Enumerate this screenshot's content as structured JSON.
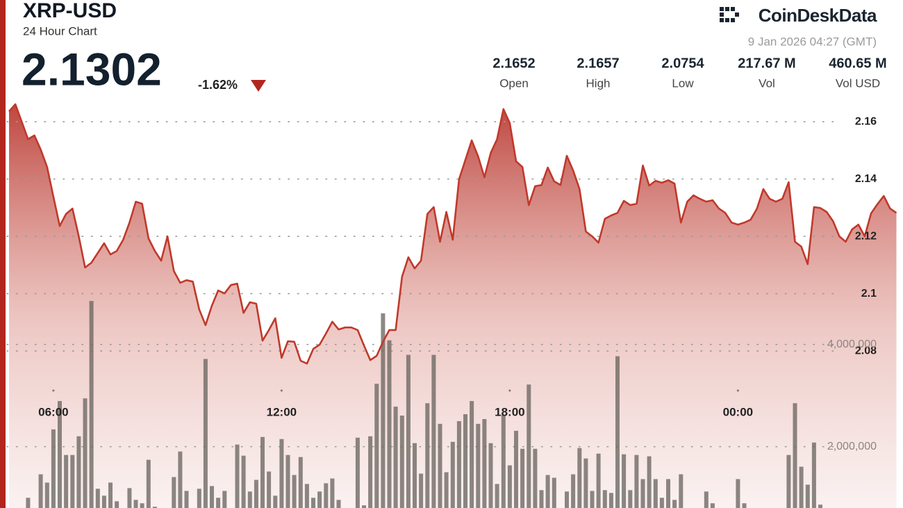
{
  "header": {
    "title": "XRP-USD",
    "subtitle": "24 Hour Chart",
    "price": "2.1302",
    "change": "-1.62%",
    "brand": "CoinDeskData",
    "timestamp": "9 Jan 2026 04:27 (GMT)",
    "stats": [
      {
        "value": "2.1652",
        "label": "Open"
      },
      {
        "value": "2.1657",
        "label": "High"
      },
      {
        "value": "2.0754",
        "label": "Low"
      },
      {
        "value": "217.67 M",
        "label": "Vol"
      },
      {
        "value": "460.65 M",
        "label": "Vol USD"
      }
    ]
  },
  "chart_data": {
    "type": "line",
    "categories": [
      null,
      null,
      null,
      null,
      null,
      null,
      null,
      "06:00",
      null,
      null,
      null,
      null,
      null,
      null,
      null,
      null,
      null,
      null,
      null,
      null,
      null,
      null,
      null,
      null,
      null,
      null,
      null,
      null,
      null,
      null,
      null,
      null,
      null,
      null,
      null,
      null,
      null,
      null,
      null,
      null,
      null,
      null,
      null,
      "12:00",
      null,
      null,
      null,
      null,
      null,
      null,
      null,
      null,
      null,
      null,
      null,
      null,
      null,
      null,
      null,
      null,
      null,
      null,
      null,
      null,
      null,
      null,
      null,
      null,
      null,
      null,
      null,
      null,
      null,
      null,
      null,
      null,
      null,
      null,
      null,
      "18:00",
      null,
      null,
      null,
      null,
      null,
      null,
      null,
      null,
      null,
      null,
      null,
      null,
      null,
      null,
      null,
      null,
      null,
      null,
      null,
      null,
      null,
      null,
      null,
      null,
      null,
      null,
      null,
      null,
      null,
      null,
      null,
      null,
      null,
      null,
      null,
      "00:00",
      null,
      null,
      null,
      null,
      null,
      null,
      null,
      null,
      null,
      null,
      null,
      null,
      null,
      null,
      null,
      null,
      null,
      null,
      null,
      null,
      null,
      null,
      null,
      null,
      null
    ],
    "series": [
      {
        "color": "#c0392b",
        "values": [
          2.1636,
          2.1661,
          2.16,
          2.1539,
          2.1552,
          2.1503,
          2.1442,
          2.1338,
          2.1236,
          2.1278,
          2.1297,
          2.12,
          2.1091,
          2.1108,
          2.1142,
          2.1176,
          2.1137,
          2.1149,
          2.1188,
          2.1248,
          2.1321,
          2.1314,
          2.1193,
          2.1149,
          2.1115,
          2.12,
          2.1079,
          2.1038,
          2.1047,
          2.1042,
          2.0945,
          2.089,
          2.0958,
          2.1011,
          2.1001,
          2.103,
          2.1035,
          2.0933,
          2.097,
          2.0965,
          2.0836,
          2.0873,
          2.0914,
          2.0776,
          2.0834,
          2.0832,
          2.0766,
          2.0756,
          2.0807,
          2.0822,
          2.0861,
          2.0902,
          2.0875,
          2.0882,
          2.0882,
          2.0873,
          2.0819,
          2.0768,
          2.0783,
          2.0832,
          2.0873,
          2.0873,
          2.1059,
          2.1127,
          2.1088,
          2.1115,
          2.1278,
          2.1302,
          2.1181,
          2.1285,
          2.1188,
          2.1399,
          2.1467,
          2.1535,
          2.1479,
          2.1406,
          2.1491,
          2.1539,
          2.1644,
          2.1595,
          2.1462,
          2.1442,
          2.1309,
          2.1375,
          2.1379,
          2.144,
          2.1392,
          2.1379,
          2.1481,
          2.143,
          2.1365,
          2.1217,
          2.12,
          2.1178,
          2.1261,
          2.1273,
          2.1282,
          2.1324,
          2.1309,
          2.1314,
          2.1447,
          2.1377,
          2.1394,
          2.1387,
          2.1396,
          2.1384,
          2.1248,
          2.1321,
          2.1343,
          2.1331,
          2.1321,
          2.1326,
          2.1297,
          2.1282,
          2.1248,
          2.1241,
          2.1248,
          2.1258,
          2.1297,
          2.1365,
          2.1331,
          2.1321,
          2.1331,
          2.1389,
          2.1181,
          2.1164,
          2.1103,
          2.1302,
          2.1299,
          2.1285,
          2.1253,
          2.12,
          2.1181,
          2.1224,
          2.1241,
          2.12,
          2.128,
          2.1312,
          2.1341,
          2.1297,
          2.1282
        ]
      },
      {
        "type": "bar",
        "axis": "y2",
        "color": "#6b6661",
        "values": [
          420000,
          757000,
          420000,
          1000000,
          554000,
          1459000,
          1297000,
          2338000,
          2892000,
          1838000,
          1838000,
          2203000,
          2946000,
          4851000,
          1176000,
          1041000,
          1297000,
          932000,
          420000,
          1189000,
          959000,
          892000,
          1743000,
          824000,
          689000,
          757000,
          1405000,
          1905000,
          1135000,
          622000,
          1176000,
          3716000,
          1230000,
          1000000,
          1135000,
          689000,
          2041000,
          1824000,
          1122000,
          1351000,
          2189000,
          1514000,
          1041000,
          2149000,
          1838000,
          1446000,
          1797000,
          1270000,
          1000000,
          1122000,
          1284000,
          1378000,
          959000,
          420000,
          420000,
          2176000,
          851000,
          2203000,
          3230000,
          4608000,
          4081000,
          2784000,
          2608000,
          3797000,
          2068000,
          1473000,
          2851000,
          3797000,
          2446000,
          1500000,
          2095000,
          2500000,
          2635000,
          2892000,
          2446000,
          2541000,
          2068000,
          1270000,
          2622000,
          1635000,
          2311000,
          1959000,
          3216000,
          1959000,
          1149000,
          1446000,
          1392000,
          689000,
          1122000,
          1459000,
          1973000,
          1770000,
          1135000,
          1865000,
          1149000,
          1095000,
          3770000,
          1851000,
          1149000,
          1838000,
          1365000,
          1811000,
          1365000,
          1000000,
          1365000,
          959000,
          1459000,
          757000,
          420000,
          689000,
          1122000,
          892000,
          420000,
          689000,
          420000,
          1365000,
          892000,
          420000,
          689000,
          420000,
          420000,
          689000,
          420000,
          1838000,
          2851000,
          1608000,
          1257000,
          2081000,
          865000,
          420000,
          420000,
          420000,
          420000,
          420000,
          420000,
          420000,
          420000,
          420000,
          420000,
          420000,
          420000
        ]
      }
    ],
    "ylim": [
      2.0252,
      2.1661
    ],
    "yticks": [
      2.08,
      2.1,
      2.12,
      2.14,
      2.16
    ],
    "y2lim": [
      800000,
      8700000
    ],
    "y2ticks": [
      {
        "value": 2000000,
        "label": "2,000,000"
      },
      {
        "value": 4000000,
        "label": "4,000,000"
      }
    ],
    "grid": true
  }
}
